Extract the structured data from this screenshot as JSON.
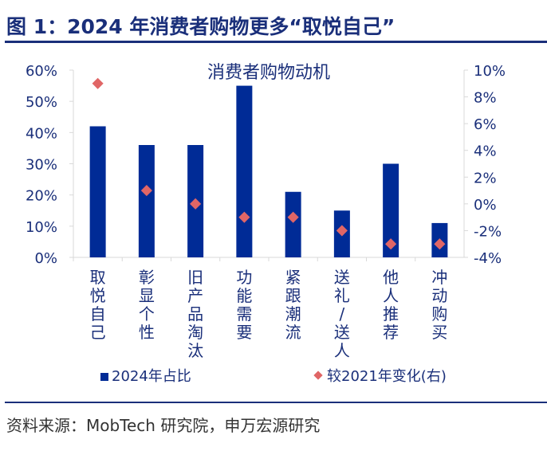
{
  "header": {
    "title": "图 1：2024 年消费者购物更多“取悦自己”"
  },
  "footer": {
    "source": "资料来源：MobTech 研究院，申万宏源研究"
  },
  "chart_data": {
    "type": "bar",
    "title": "消费者购物动机",
    "categories": [
      "取悦自己",
      "彰显个性",
      "旧产品淘汰",
      "功能需要",
      "紧跟潮流",
      "送礼/送人",
      "他人推荐",
      "冲动购买"
    ],
    "series": [
      {
        "name": "2024年占比",
        "type": "bar",
        "axis": "left",
        "color": "#002b96",
        "values": [
          42,
          36,
          36,
          55,
          21,
          15,
          30,
          11
        ]
      },
      {
        "name": "较2021年变化(右)",
        "type": "scatter",
        "marker": "diamond",
        "axis": "right",
        "color": "#e06666",
        "values": [
          9,
          1,
          0,
          -1,
          -1,
          -2,
          -3,
          -3
        ]
      }
    ],
    "y_left": {
      "ylim": [
        0,
        60
      ],
      "ticks": [
        "0%",
        "10%",
        "20%",
        "30%",
        "40%",
        "50%",
        "60%"
      ]
    },
    "y_right": {
      "ylim": [
        -4,
        10
      ],
      "ticks": [
        "-4%",
        "-2%",
        "0%",
        "2%",
        "4%",
        "6%",
        "8%",
        "10%"
      ]
    },
    "legend": "bottom",
    "grid": false
  }
}
